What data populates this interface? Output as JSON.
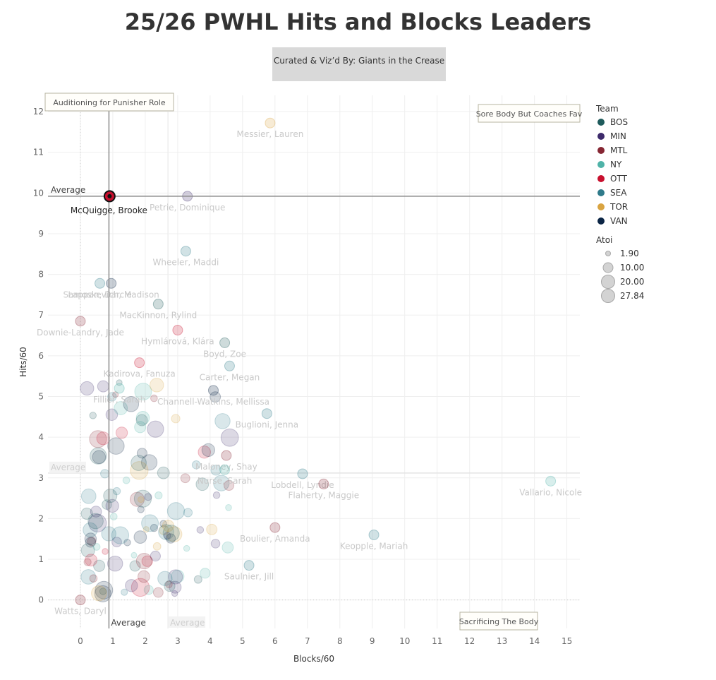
{
  "title": "25/26 PWHL Hits and Blocks Leaders",
  "credit": "Curated & Viz’d By: Giants in the Crease",
  "chart_data": {
    "type": "scatter",
    "xlabel": "Blocks/60",
    "ylabel": "Hits/60",
    "xlim": [
      -1,
      15.4
    ],
    "ylim": [
      -0.7,
      12.4
    ],
    "xticks": [
      0,
      1,
      2,
      3,
      4,
      5,
      6,
      7,
      8,
      9,
      10,
      11,
      12,
      13,
      14,
      15
    ],
    "yticks": [
      0,
      1,
      2,
      3,
      4,
      5,
      6,
      7,
      8,
      9,
      10,
      11,
      12
    ],
    "grid": true,
    "quadrant_labels": {
      "top_left": "Auditioning for Punisher Role",
      "top_right": "Sore Body But Coaches Fav",
      "bottom_right": "Sacrificing The Body"
    },
    "reference_lines": [
      {
        "axis": "y",
        "value": 9.92,
        "label": "Average",
        "highlighted": true
      },
      {
        "axis": "x",
        "value": 0.88,
        "label": "Average",
        "highlighted": true
      },
      {
        "axis": "y",
        "value": 3.12,
        "label": "Average",
        "highlighted": false
      },
      {
        "axis": "x",
        "value": 2.7,
        "label": "Average",
        "highlighted": false
      }
    ],
    "highlight_player": {
      "name": "McQuigge, Brooke",
      "team": "OTT",
      "x": 0.9,
      "y": 9.92
    },
    "players": [
      {
        "name": "Messier, Lauren",
        "team": "TOR",
        "x": 5.85,
        "y": 11.72
      },
      {
        "name": "Petrie, Dominique",
        "team": "MIN",
        "x": 3.3,
        "y": 9.92
      },
      {
        "name": "Wheeler, Maddi",
        "team": "SEA",
        "x": 3.25,
        "y": 8.57
      },
      {
        "name": "Samoskevich, Madison",
        "team": "VAN",
        "x": 0.95,
        "y": 7.78
      },
      {
        "name": "Lappan, Darcie",
        "team": "SEA",
        "x": 0.6,
        "y": 7.78
      },
      {
        "name": "MacKinnon, Rylind",
        "team": "BOS",
        "x": 2.4,
        "y": 7.27
      },
      {
        "name": "Hymlárová, Klára",
        "team": "OTT",
        "x": 3.0,
        "y": 6.63
      },
      {
        "name": "Downie-Landry, Jade",
        "team": "MTL",
        "x": 0.0,
        "y": 6.85
      },
      {
        "name": "Boyd, Zoe",
        "team": "BOS",
        "x": 4.45,
        "y": 6.32
      },
      {
        "name": "Kadirova, Fanuza",
        "team": "OTT",
        "x": 1.82,
        "y": 5.83
      },
      {
        "name": "Carter, Megan",
        "team": "SEA",
        "x": 4.6,
        "y": 5.75
      },
      {
        "name": "Fillier, Sarah",
        "team": "NY",
        "x": 1.2,
        "y": 5.2
      },
      {
        "name": "Channell-Watkins, Mellissa",
        "team": "VAN",
        "x": 4.1,
        "y": 5.15
      },
      {
        "name": "Buglioni, Jenna",
        "team": "SEA",
        "x": 5.75,
        "y": 4.58
      },
      {
        "name": "Maloney, Shay",
        "team": "MTL",
        "x": 4.5,
        "y": 3.55
      },
      {
        "name": "Nurse, Sarah",
        "team": "NY",
        "x": 4.45,
        "y": 3.2
      },
      {
        "name": "Lobdell, Lyndie",
        "team": "SEA",
        "x": 6.85,
        "y": 3.1
      },
      {
        "name": "Vallario, Nicole",
        "team": "NY",
        "x": 14.5,
        "y": 2.92
      },
      {
        "name": "Flaherty, Maggie",
        "team": "MTL",
        "x": 7.5,
        "y": 2.85
      },
      {
        "name": "Boulier, Amanda",
        "team": "MTL",
        "x": 6.0,
        "y": 1.78
      },
      {
        "name": "Keopple, Mariah",
        "team": "SEA",
        "x": 9.05,
        "y": 1.6
      },
      {
        "name": "Saulnier, Jill",
        "team": "SEA",
        "x": 5.2,
        "y": 0.85
      },
      {
        "name": "Watts, Daryl",
        "team": "MTL",
        "x": 0.0,
        "y": 0.0
      }
    ],
    "size_legend": {
      "title": "Atoi",
      "values": [
        "1.90",
        "10.00",
        "20.00",
        "27.84"
      ]
    },
    "legend": {
      "title": "Team",
      "items": [
        {
          "team": "BOS",
          "color": "#1f5b5c"
        },
        {
          "team": "MIN",
          "color": "#3d2a6b"
        },
        {
          "team": "MTL",
          "color": "#862633"
        },
        {
          "team": "NY",
          "color": "#4fb3a8"
        },
        {
          "team": "OTT",
          "color": "#c8102e"
        },
        {
          "team": "SEA",
          "color": "#2f7a8a"
        },
        {
          "team": "TOR",
          "color": "#d9a441"
        },
        {
          "team": "VAN",
          "color": "#0b2545"
        }
      ]
    }
  }
}
